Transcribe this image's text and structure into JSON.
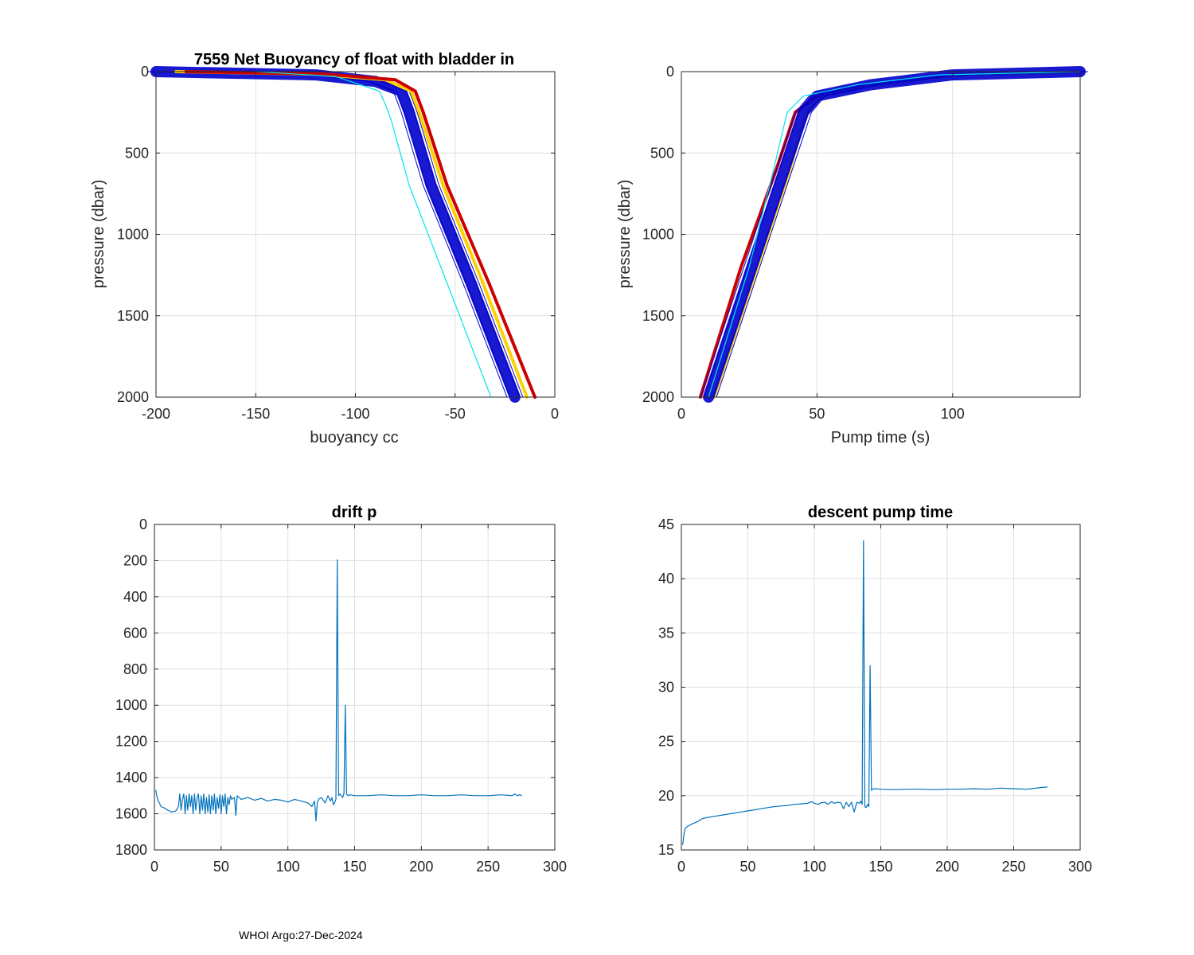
{
  "footer": "WHOI Argo:27-Dec-2024",
  "colors": {
    "series": "#0072BD",
    "grid": "#DFDFDF",
    "axis": "#262626",
    "profile_blue": "#0000CC",
    "profile_red": "#CC0000",
    "profile_yellow": "#FFD000",
    "profile_cyan": "#00E5EE"
  },
  "chart_data": [
    {
      "id": "buoyancy",
      "type": "line",
      "title": "7559 Net Buoyancy of float with bladder in",
      "xlabel": "buoyancy cc",
      "ylabel": "pressure (dbar)",
      "xlim": [
        -200,
        0
      ],
      "ylim": [
        2000,
        0
      ],
      "y_reversed": true,
      "xticks": [
        -200,
        -150,
        -100,
        -50,
        0
      ],
      "yticks": [
        0,
        500,
        1000,
        1500,
        2000
      ],
      "series": [
        {
          "name": "profile envelope (blue)",
          "color": "#0000CC",
          "x": [
            -200,
            -120,
            -90,
            -77,
            -73,
            -62,
            -42,
            -20
          ],
          "y": [
            0,
            20,
            60,
            120,
            250,
            700,
            1300,
            2000
          ]
        },
        {
          "name": "profile (yellow)",
          "color": "#FFD000",
          "x": [
            -190,
            -120,
            -85,
            -72,
            -68,
            -56,
            -36,
            -14
          ],
          "y": [
            0,
            15,
            50,
            120,
            250,
            700,
            1300,
            2000
          ]
        },
        {
          "name": "profile (red)",
          "color": "#CC0000",
          "x": [
            -185,
            -115,
            -80,
            -70,
            -66,
            -54,
            -33,
            -10
          ],
          "y": [
            0,
            15,
            50,
            120,
            250,
            700,
            1300,
            2000
          ]
        },
        {
          "name": "outlier profile (cyan)",
          "color": "#00E5EE",
          "x": [
            -150,
            -110,
            -88,
            -85,
            -82,
            -73,
            -54,
            -32
          ],
          "y": [
            0,
            30,
            120,
            200,
            300,
            700,
            1300,
            2000
          ]
        }
      ]
    },
    {
      "id": "pumptime",
      "type": "line",
      "title": "",
      "xlabel": "Pump time (s)",
      "ylabel": "pressure (dbar)",
      "xlim": [
        0,
        147
      ],
      "ylim": [
        2000,
        0
      ],
      "y_reversed": true,
      "xticks": [
        0,
        50,
        100
      ],
      "yticks": [
        0,
        500,
        1000,
        1500,
        2000
      ],
      "series": [
        {
          "name": "profile (red)",
          "color": "#CC0000",
          "x": [
            7,
            22,
            35,
            42,
            50,
            70,
            100,
            147
          ],
          "y": [
            2000,
            1200,
            600,
            250,
            150,
            80,
            20,
            0
          ]
        },
        {
          "name": "profile (yellow)",
          "color": "#FFD000",
          "x": [
            12,
            28,
            40,
            46,
            52,
            72,
            102,
            147
          ],
          "y": [
            2000,
            1200,
            600,
            250,
            150,
            80,
            20,
            0
          ]
        },
        {
          "name": "profile envelope (blue)",
          "color": "#0000CC",
          "x": [
            10,
            26,
            38,
            45,
            50,
            70,
            100,
            147
          ],
          "y": [
            2000,
            1200,
            600,
            250,
            150,
            80,
            20,
            0
          ]
        },
        {
          "name": "outlier profile (cyan)",
          "color": "#00E5EE",
          "x": [
            10,
            25,
            34,
            39,
            45,
            65,
            95,
            147
          ],
          "y": [
            2000,
            1200,
            600,
            250,
            150,
            80,
            20,
            0
          ]
        }
      ]
    },
    {
      "id": "driftp",
      "type": "line",
      "title": "drift p",
      "xlabel": "",
      "ylabel": "",
      "xlim": [
        0,
        300
      ],
      "ylim": [
        1800,
        0
      ],
      "y_reversed": true,
      "xticks": [
        0,
        50,
        100,
        150,
        200,
        250,
        300
      ],
      "yticks": [
        0,
        200,
        400,
        600,
        800,
        1000,
        1200,
        1400,
        1600,
        1800
      ],
      "series": [
        {
          "name": "drift p",
          "color": "#0072BD",
          "x": [
            1,
            2,
            3,
            5,
            8,
            10,
            13,
            16,
            18,
            19,
            20,
            21,
            22,
            23,
            24,
            25,
            26,
            27,
            28,
            29,
            30,
            31,
            32,
            33,
            34,
            35,
            36,
            37,
            38,
            39,
            40,
            41,
            42,
            43,
            44,
            45,
            46,
            47,
            48,
            49,
            50,
            51,
            52,
            53,
            54,
            55,
            56,
            57,
            58,
            60,
            61,
            62,
            65,
            70,
            75,
            80,
            85,
            90,
            95,
            100,
            105,
            110,
            115,
            118,
            120,
            121,
            122,
            123,
            125,
            128,
            130,
            132,
            133,
            134,
            135,
            136,
            137,
            138,
            139,
            140,
            141,
            142,
            143,
            144,
            145,
            147,
            150,
            160,
            170,
            180,
            190,
            200,
            210,
            220,
            230,
            240,
            250,
            260,
            268,
            270,
            272,
            274,
            275
          ],
          "y": [
            1470,
            1510,
            1530,
            1560,
            1570,
            1580,
            1590,
            1585,
            1560,
            1490,
            1580,
            1520,
            1490,
            1600,
            1500,
            1580,
            1490,
            1560,
            1500,
            1600,
            1490,
            1580,
            1510,
            1490,
            1600,
            1500,
            1580,
            1490,
            1600,
            1510,
            1590,
            1495,
            1600,
            1500,
            1580,
            1490,
            1600,
            1510,
            1570,
            1495,
            1600,
            1500,
            1560,
            1490,
            1600,
            1510,
            1550,
            1500,
            1520,
            1510,
            1610,
            1500,
            1520,
            1510,
            1525,
            1515,
            1530,
            1520,
            1525,
            1535,
            1520,
            1530,
            1540,
            1560,
            1530,
            1640,
            1540,
            1520,
            1510,
            1540,
            1500,
            1530,
            1510,
            1550,
            1540,
            1520,
            195,
            1500,
            1490,
            1500,
            1510,
            1490,
            1000,
            1490,
            1500,
            1495,
            1500,
            1500,
            1495,
            1500,
            1500,
            1495,
            1500,
            1500,
            1495,
            1500,
            1500,
            1495,
            1500,
            1490,
            1500,
            1495,
            1500
          ]
        }
      ]
    },
    {
      "id": "descentpump",
      "type": "line",
      "title": "descent pump time",
      "xlabel": "",
      "ylabel": "",
      "xlim": [
        0,
        300
      ],
      "ylim": [
        15,
        45
      ],
      "y_reversed": false,
      "xticks": [
        0,
        50,
        100,
        150,
        200,
        250,
        300
      ],
      "yticks": [
        15,
        20,
        25,
        30,
        35,
        40,
        45
      ],
      "series": [
        {
          "name": "descent pump time",
          "color": "#0072BD",
          "x": [
            1,
            2,
            3,
            5,
            8,
            12,
            16,
            20,
            25,
            30,
            35,
            40,
            45,
            50,
            55,
            60,
            65,
            70,
            75,
            80,
            85,
            90,
            95,
            98,
            100,
            103,
            105,
            108,
            110,
            113,
            115,
            118,
            120,
            122,
            124,
            126,
            128,
            130,
            132,
            134,
            135,
            136,
            137,
            138,
            139,
            140,
            141,
            142,
            143,
            144,
            145,
            150,
            160,
            170,
            180,
            190,
            200,
            210,
            220,
            230,
            240,
            250,
            260,
            270,
            275
          ],
          "y": [
            15.5,
            16.5,
            17.0,
            17.2,
            17.4,
            17.6,
            17.9,
            18.0,
            18.1,
            18.2,
            18.3,
            18.4,
            18.5,
            18.6,
            18.7,
            18.8,
            18.9,
            19.0,
            19.05,
            19.1,
            19.2,
            19.25,
            19.3,
            19.45,
            19.3,
            19.2,
            19.35,
            19.4,
            19.2,
            19.45,
            19.3,
            19.4,
            19.35,
            18.8,
            19.4,
            19.0,
            19.4,
            18.5,
            19.4,
            19.3,
            19.5,
            19.2,
            43.5,
            19.0,
            18.9,
            19.2,
            19.0,
            32.0,
            20.5,
            20.6,
            20.65,
            20.6,
            20.55,
            20.6,
            20.6,
            20.55,
            20.6,
            20.6,
            20.65,
            20.6,
            20.7,
            20.65,
            20.6,
            20.75,
            20.8
          ]
        }
      ]
    }
  ]
}
